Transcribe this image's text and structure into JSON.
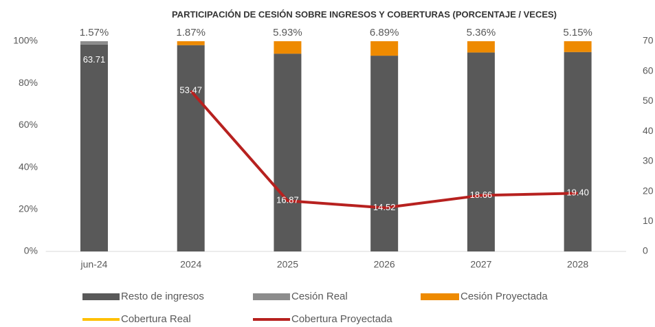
{
  "chart_data": {
    "type": "bar_line",
    "title": "PARTICIPACIÓN DE CESIÓN SOBRE INGRESOS Y COBERTURAS (PORCENTAJE / VECES)",
    "categories": [
      "jun-24",
      "2024",
      "2025",
      "2026",
      "2027",
      "2028"
    ],
    "series": [
      {
        "name": "Resto de ingresos",
        "type": "bar",
        "color": "#595959",
        "values": [
          98.43,
          98.13,
          94.07,
          93.11,
          94.64,
          94.85
        ]
      },
      {
        "name": "Cesión Real",
        "type": "bar",
        "color": "#8c8c8c",
        "values": [
          1.57,
          null,
          null,
          null,
          null,
          null
        ],
        "value_labels": [
          "1.57%",
          null,
          null,
          null,
          null,
          null
        ]
      },
      {
        "name": "Cesión Proyectada",
        "type": "bar",
        "color": "#ee8a00",
        "values": [
          null,
          1.87,
          5.93,
          6.89,
          5.36,
          5.15
        ],
        "value_labels": [
          null,
          "1.87%",
          "5.93%",
          "6.89%",
          "5.36%",
          "5.15%"
        ]
      },
      {
        "name": "Cobertura Real",
        "type": "line",
        "axis": "y2",
        "color": "#ffc000",
        "values": [
          63.71,
          null,
          null,
          null,
          null,
          null
        ],
        "value_labels": [
          "63.71",
          null,
          null,
          null,
          null,
          null
        ]
      },
      {
        "name": "Cobertura Proyectada",
        "type": "line",
        "axis": "y2",
        "color": "#b7211f",
        "values": [
          null,
          53.47,
          16.87,
          14.52,
          18.66,
          19.4
        ],
        "value_labels": [
          null,
          "53.47",
          "16.87",
          "14.52",
          "18.66",
          "19.40"
        ]
      }
    ],
    "ylim": [
      0,
      100
    ],
    "yticks": [
      {
        "value": 0,
        "label": "0%"
      },
      {
        "value": 20,
        "label": "20%"
      },
      {
        "value": 40,
        "label": "40%"
      },
      {
        "value": 60,
        "label": "60%"
      },
      {
        "value": 80,
        "label": "80%"
      },
      {
        "value": 100,
        "label": "100%"
      }
    ],
    "y2lim": [
      0,
      70
    ],
    "y2ticks": [
      0,
      10,
      20,
      30,
      40,
      50,
      60,
      70
    ],
    "legend": "bottom"
  }
}
